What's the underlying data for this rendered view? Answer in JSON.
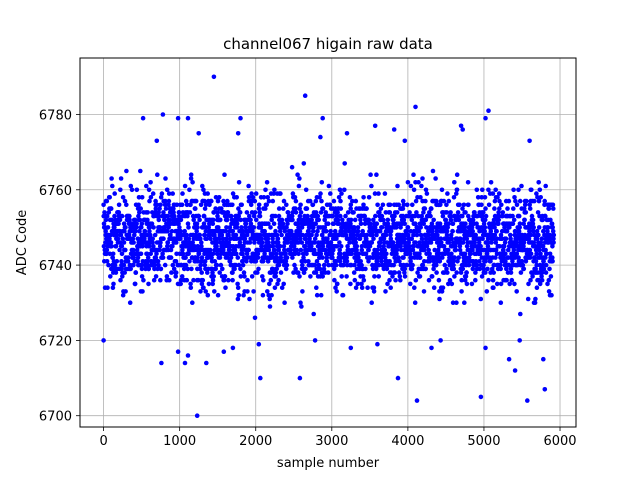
{
  "chart_data": {
    "type": "scatter",
    "title": "channel067 higain raw data",
    "xlabel": "sample number",
    "ylabel": "ADC Code",
    "xlim": [
      -310,
      6210
    ],
    "ylim": [
      6697,
      6795
    ],
    "xticks": [
      0,
      1000,
      2000,
      3000,
      4000,
      5000,
      6000
    ],
    "yticks": [
      6700,
      6720,
      6740,
      6760,
      6780
    ],
    "grid": true,
    "marker_color": "#0000ff",
    "series": [
      {
        "n_samples": 5920,
        "typical_range": [
          6730,
          6763
        ],
        "center": 6747,
        "outliers": [
          [
            1230,
            6700
          ],
          [
            1450,
            6790
          ],
          [
            2650,
            6785
          ],
          [
            4100,
            6782
          ],
          [
            5060,
            6781
          ],
          [
            4120,
            6704
          ],
          [
            5570,
            6704
          ],
          [
            4960,
            6705
          ],
          [
            5800,
            6707
          ],
          [
            2060,
            6710
          ],
          [
            2580,
            6710
          ],
          [
            3870,
            6710
          ],
          [
            5410,
            6712
          ],
          [
            760,
            6714
          ],
          [
            1070,
            6714
          ],
          [
            1350,
            6714
          ],
          [
            5330,
            6715
          ],
          [
            5780,
            6715
          ],
          [
            980,
            6717
          ],
          [
            1580,
            6717
          ],
          [
            1700,
            6718
          ],
          [
            2040,
            6719
          ],
          [
            3250,
            6718
          ],
          [
            4310,
            6718
          ],
          [
            5020,
            6718
          ],
          [
            1110,
            6716
          ],
          [
            0,
            6720
          ],
          [
            2780,
            6720
          ],
          [
            3600,
            6719
          ],
          [
            4430,
            6720
          ],
          [
            5470,
            6720
          ],
          [
            780,
            6780
          ],
          [
            980,
            6779
          ],
          [
            1110,
            6779
          ],
          [
            1800,
            6779
          ],
          [
            2880,
            6779
          ],
          [
            3820,
            6776
          ],
          [
            4700,
            6777
          ],
          [
            5020,
            6779
          ],
          [
            520,
            6779
          ],
          [
            700,
            6773
          ],
          [
            1770,
            6775
          ],
          [
            3200,
            6775
          ],
          [
            3570,
            6777
          ],
          [
            2850,
            6774
          ],
          [
            3960,
            6773
          ],
          [
            5600,
            6773
          ],
          [
            1250,
            6775
          ],
          [
            4720,
            6776
          ]
        ]
      }
    ]
  }
}
